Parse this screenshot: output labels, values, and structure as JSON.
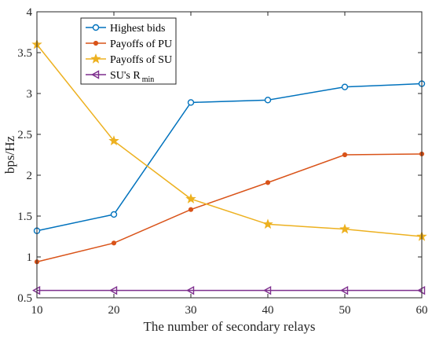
{
  "chart_data": {
    "type": "line",
    "title": "",
    "xlabel": "The number of secondary relays",
    "ylabel": "bps/Hz",
    "xlim": [
      10,
      60
    ],
    "ylim": [
      0.5,
      4
    ],
    "xticks": [
      10,
      20,
      30,
      40,
      50,
      60
    ],
    "yticks": [
      0.5,
      1,
      1.5,
      2,
      2.5,
      3,
      3.5,
      4
    ],
    "x": [
      10,
      20,
      30,
      40,
      50,
      60
    ],
    "grid": false,
    "legend_position": "top-left",
    "series": [
      {
        "name": "Highest bids",
        "color": "#0072BD",
        "marker": "circle",
        "values": [
          1.32,
          1.52,
          2.89,
          2.92,
          3.08,
          3.12
        ]
      },
      {
        "name": "Payoffs of PU",
        "color": "#D95319",
        "marker": "dot",
        "values": [
          0.94,
          1.17,
          1.58,
          1.91,
          2.25,
          2.26
        ]
      },
      {
        "name": "Payoffs of SU",
        "color": "#EDB120",
        "marker": "star",
        "values": [
          3.6,
          2.42,
          1.71,
          1.4,
          1.34,
          1.25
        ]
      },
      {
        "name": "SU's R",
        "name_subscript": "min",
        "color": "#7E2F8E",
        "marker": "triangle-left",
        "values": [
          0.59,
          0.59,
          0.59,
          0.59,
          0.59,
          0.59
        ]
      }
    ]
  }
}
